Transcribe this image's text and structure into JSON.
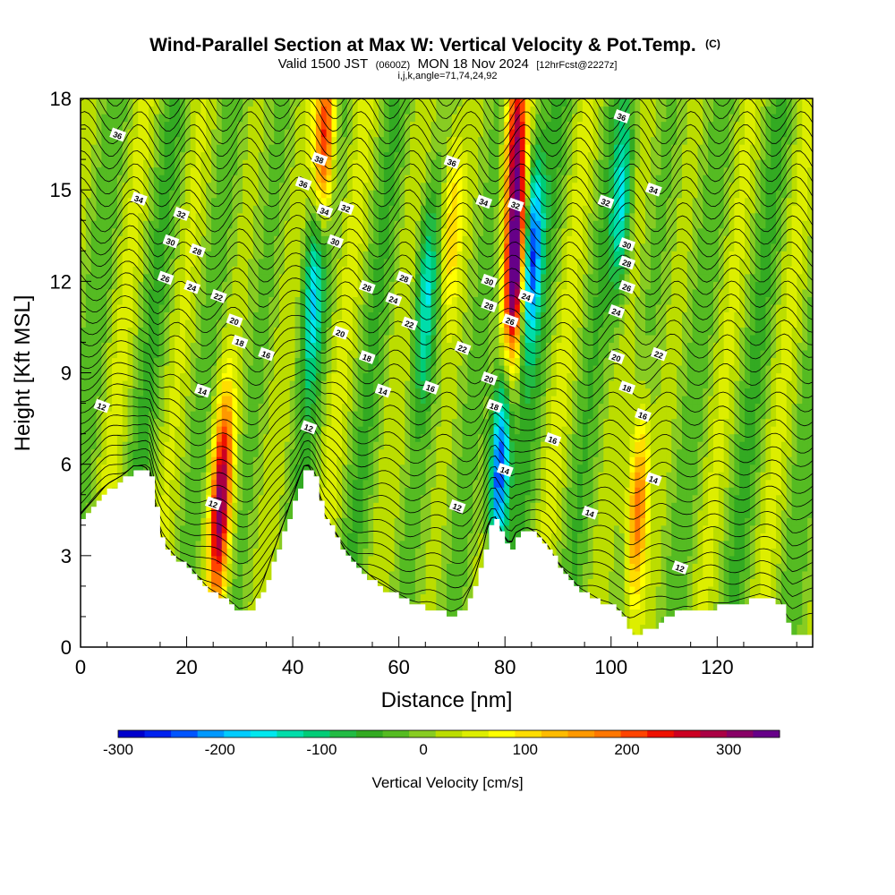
{
  "title": {
    "main": "Wind-Parallel Section at Max W: Vertical Velocity & Pot.Temp.",
    "main_suffix": "(C)",
    "valid_prefix": "Valid 1500 JST",
    "valid_utc": "(0600Z)",
    "valid_date": "MON 18 Nov 2024",
    "forecast": "[12hrFcst@2227z]",
    "indices": "i,j,k,angle=71,74,24,92"
  },
  "chart_data": {
    "type": "heatmap",
    "xlabel": "Distance [nm]",
    "ylabel": "Height [Kft MSL]",
    "xlim": [
      0,
      138
    ],
    "ylim": [
      0,
      18
    ],
    "x_ticks": [
      "0",
      "20",
      "40",
      "60",
      "80",
      "100",
      "120"
    ],
    "y_ticks": [
      "0",
      "3",
      "6",
      "9",
      "12",
      "15",
      "18"
    ],
    "grid": false,
    "colorbar": {
      "label": "Vertical Velocity [cm/s]",
      "range": [
        -300,
        350
      ],
      "tick_labels": [
        "-300",
        "-200",
        "-100",
        "0",
        "100",
        "200",
        "300"
      ],
      "colors": [
        "#0000cc",
        "#0022ee",
        "#0055ff",
        "#0099ff",
        "#00ccff",
        "#00e8ee",
        "#00ddaa",
        "#00cc77",
        "#22bb44",
        "#33aa22",
        "#55bb22",
        "#88cc22",
        "#bbdd00",
        "#ddee00",
        "#ffff00",
        "#ffdd00",
        "#ffbb00",
        "#ff9900",
        "#ff7700",
        "#ff4400",
        "#ee1100",
        "#cc0022",
        "#aa0044",
        "#880066",
        "#660088"
      ]
    },
    "terrain": {
      "x": [
        0,
        3,
        5,
        8,
        10,
        12,
        13,
        14,
        15,
        16,
        17,
        18,
        20,
        22,
        24,
        26,
        28,
        30,
        32,
        34,
        36,
        38,
        40,
        42,
        43,
        44,
        45,
        46,
        48,
        50,
        52,
        54,
        56,
        58,
        60,
        62,
        64,
        66,
        68,
        70,
        72,
        74,
        76,
        77,
        78,
        79,
        80,
        81,
        82,
        84,
        86,
        88,
        90,
        92,
        94,
        96,
        98,
        100,
        102,
        103,
        104,
        106,
        108,
        110,
        112,
        114,
        116,
        118,
        120,
        122,
        124,
        126,
        128,
        130,
        132,
        134,
        136,
        138
      ],
      "height_kft": [
        4.2,
        4.8,
        5.2,
        5.5,
        5.8,
        5.8,
        5.6,
        4.5,
        3.6,
        3.2,
        3.0,
        2.8,
        2.6,
        2.2,
        1.8,
        1.6,
        1.4,
        1.1,
        1.2,
        1.8,
        2.8,
        3.8,
        4.8,
        5.8,
        5.8,
        5.5,
        4.8,
        4.2,
        3.6,
        3.0,
        2.6,
        2.3,
        2.0,
        1.8,
        1.6,
        1.4,
        1.3,
        1.2,
        1.1,
        1.0,
        1.2,
        2.0,
        3.2,
        4.0,
        4.2,
        3.8,
        3.4,
        3.2,
        3.6,
        3.8,
        3.6,
        3.2,
        2.6,
        2.2,
        1.8,
        1.6,
        1.4,
        1.3,
        1.0,
        0.6,
        0.4,
        0.5,
        0.6,
        1.0,
        1.1,
        1.2,
        1.1,
        1.2,
        1.3,
        1.3,
        1.4,
        1.5,
        1.6,
        1.5,
        1.4,
        0.3,
        0.4,
        0.3
      ]
    },
    "w_features": [
      {
        "x": 26,
        "z": 4.0,
        "w": 190
      },
      {
        "x": 27,
        "z": 5.8,
        "w": 140
      },
      {
        "x": 46,
        "z": 16.5,
        "w": 260
      },
      {
        "x": 44,
        "z": 12.0,
        "w": -160
      },
      {
        "x": 82,
        "z": 12.5,
        "w": 350
      },
      {
        "x": 82,
        "z": 17.0,
        "w": 240
      },
      {
        "x": 85,
        "z": 13.0,
        "w": -260
      },
      {
        "x": 79,
        "z": 6.0,
        "w": -290
      },
      {
        "x": 105,
        "z": 4.5,
        "w": 200
      },
      {
        "x": 102,
        "z": 14.5,
        "w": -150
      },
      {
        "x": 65,
        "z": 11.5,
        "w": -140
      },
      {
        "x": 70,
        "z": 14.0,
        "w": 120
      }
    ],
    "contours": {
      "label_color": "#000000",
      "theta_levels_c": [
        12,
        14,
        16,
        18,
        20,
        22,
        24,
        26,
        28,
        30,
        32,
        34,
        36,
        38
      ],
      "labels": [
        {
          "x": 7,
          "z": 16.8,
          "text": "36"
        },
        {
          "x": 11,
          "z": 14.7,
          "text": "34"
        },
        {
          "x": 19,
          "z": 14.2,
          "text": "32"
        },
        {
          "x": 17,
          "z": 13.3,
          "text": "30"
        },
        {
          "x": 22,
          "z": 13.0,
          "text": "28"
        },
        {
          "x": 16,
          "z": 12.1,
          "text": "26"
        },
        {
          "x": 21,
          "z": 11.8,
          "text": "24"
        },
        {
          "x": 26,
          "z": 11.5,
          "text": "22"
        },
        {
          "x": 29,
          "z": 10.7,
          "text": "20"
        },
        {
          "x": 30,
          "z": 10.0,
          "text": "18"
        },
        {
          "x": 35,
          "z": 9.6,
          "text": "16"
        },
        {
          "x": 23,
          "z": 8.4,
          "text": "14"
        },
        {
          "x": 4,
          "z": 7.9,
          "text": "12"
        },
        {
          "x": 25,
          "z": 4.7,
          "text": "12"
        },
        {
          "x": 43,
          "z": 7.2,
          "text": "12"
        },
        {
          "x": 45,
          "z": 16.0,
          "text": "38"
        },
        {
          "x": 42,
          "z": 15.2,
          "text": "36"
        },
        {
          "x": 46,
          "z": 14.3,
          "text": "34"
        },
        {
          "x": 50,
          "z": 14.4,
          "text": "32"
        },
        {
          "x": 48,
          "z": 13.3,
          "text": "30"
        },
        {
          "x": 54,
          "z": 11.8,
          "text": "28"
        },
        {
          "x": 61,
          "z": 12.1,
          "text": "28"
        },
        {
          "x": 59,
          "z": 11.4,
          "text": "24"
        },
        {
          "x": 62,
          "z": 10.6,
          "text": "22"
        },
        {
          "x": 49,
          "z": 10.3,
          "text": "20"
        },
        {
          "x": 54,
          "z": 9.5,
          "text": "18"
        },
        {
          "x": 57,
          "z": 8.4,
          "text": "14"
        },
        {
          "x": 66,
          "z": 8.5,
          "text": "16"
        },
        {
          "x": 71,
          "z": 4.6,
          "text": "12"
        },
        {
          "x": 70,
          "z": 15.9,
          "text": "36"
        },
        {
          "x": 76,
          "z": 14.6,
          "text": "34"
        },
        {
          "x": 82,
          "z": 14.5,
          "text": "32"
        },
        {
          "x": 77,
          "z": 12.0,
          "text": "30"
        },
        {
          "x": 77,
          "z": 11.2,
          "text": "28"
        },
        {
          "x": 81,
          "z": 10.7,
          "text": "26"
        },
        {
          "x": 84,
          "z": 11.5,
          "text": "24"
        },
        {
          "x": 72,
          "z": 9.8,
          "text": "22"
        },
        {
          "x": 77,
          "z": 8.8,
          "text": "20"
        },
        {
          "x": 78,
          "z": 7.9,
          "text": "18"
        },
        {
          "x": 80,
          "z": 5.8,
          "text": "14"
        },
        {
          "x": 89,
          "z": 6.8,
          "text": "16"
        },
        {
          "x": 96,
          "z": 4.4,
          "text": "14"
        },
        {
          "x": 102,
          "z": 17.4,
          "text": "36"
        },
        {
          "x": 108,
          "z": 15.0,
          "text": "34"
        },
        {
          "x": 99,
          "z": 14.6,
          "text": "32"
        },
        {
          "x": 103,
          "z": 13.2,
          "text": "30"
        },
        {
          "x": 103,
          "z": 12.6,
          "text": "28"
        },
        {
          "x": 103,
          "z": 11.8,
          "text": "26"
        },
        {
          "x": 101,
          "z": 11.0,
          "text": "24"
        },
        {
          "x": 109,
          "z": 9.6,
          "text": "22"
        },
        {
          "x": 101,
          "z": 9.5,
          "text": "20"
        },
        {
          "x": 103,
          "z": 8.5,
          "text": "18"
        },
        {
          "x": 106,
          "z": 7.6,
          "text": "16"
        },
        {
          "x": 108,
          "z": 5.5,
          "text": "14"
        },
        {
          "x": 113,
          "z": 2.6,
          "text": "12"
        }
      ]
    }
  }
}
